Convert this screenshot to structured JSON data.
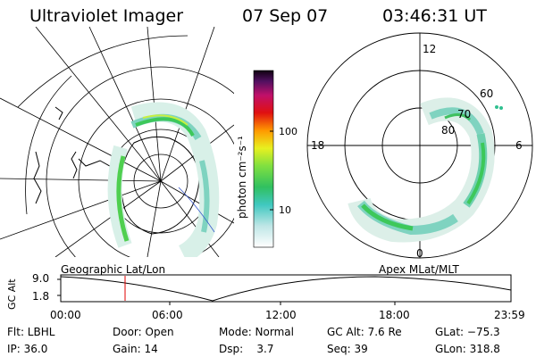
{
  "header": {
    "title": "Ultraviolet Imager",
    "date": "07 Sep 07",
    "time": "03:46:31 UT"
  },
  "colorbar": {
    "unit": "photon cm⁻²s⁻¹",
    "tick_100": "100",
    "tick_10": "10"
  },
  "mlt_plot": {
    "lat_labels": [
      "60",
      "70",
      "80"
    ],
    "mlt_labels": [
      "12",
      "18",
      "6",
      "0"
    ]
  },
  "orbit_strip": {
    "left_caption": "Geographic Lat/Lon",
    "right_caption": "Apex MLat/MLT",
    "y_axis_label": "GC Alt",
    "y_top": "9.0",
    "y_bottom": "1.8",
    "time_ticks": [
      "00:00",
      "06:00",
      "12:00",
      "18:00",
      "23:59"
    ],
    "marker_color": "#e00000"
  },
  "footer": {
    "rows": [
      [
        "Flt: LBHL",
        "Door: Open",
        "Mode: Normal",
        "GC Alt: 7.6 Re",
        "GLat: −75.3"
      ],
      [
        "IP: 36.0",
        "Gain: 14",
        "Dsp:    3.7",
        "Seq: 39",
        "GLon: 318.8"
      ]
    ]
  }
}
